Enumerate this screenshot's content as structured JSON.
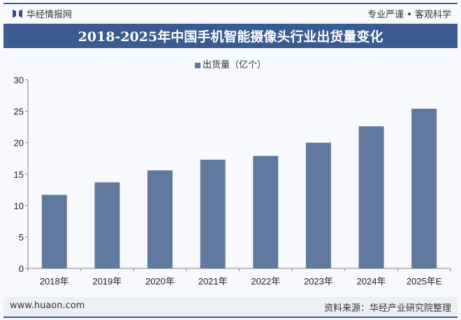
{
  "header": {
    "brand": "华经情报网",
    "slogan": "专业严谨 • 客观科学"
  },
  "colors": {
    "accent": "#3b5a8f",
    "bar": "#62799f"
  },
  "chart_data": {
    "type": "bar",
    "title": "2018-2025年中国手机智能摄像头行业出货量变化",
    "categories": [
      "2018年",
      "2019年",
      "2020年",
      "2021年",
      "2022年",
      "2023年",
      "2024年",
      "2025年E"
    ],
    "series": [
      {
        "name": "出货量（亿个）",
        "values": [
          11.7,
          13.7,
          15.6,
          17.3,
          17.9,
          20.0,
          22.6,
          25.4
        ]
      }
    ],
    "yticks": [
      "0",
      "5",
      "10",
      "15",
      "20",
      "25",
      "30"
    ],
    "ylim": [
      0,
      30
    ],
    "grid": false,
    "legend": "top"
  },
  "footer": {
    "site": "www.huaon.com",
    "source": "资料来源：华经产业研究院整理"
  }
}
